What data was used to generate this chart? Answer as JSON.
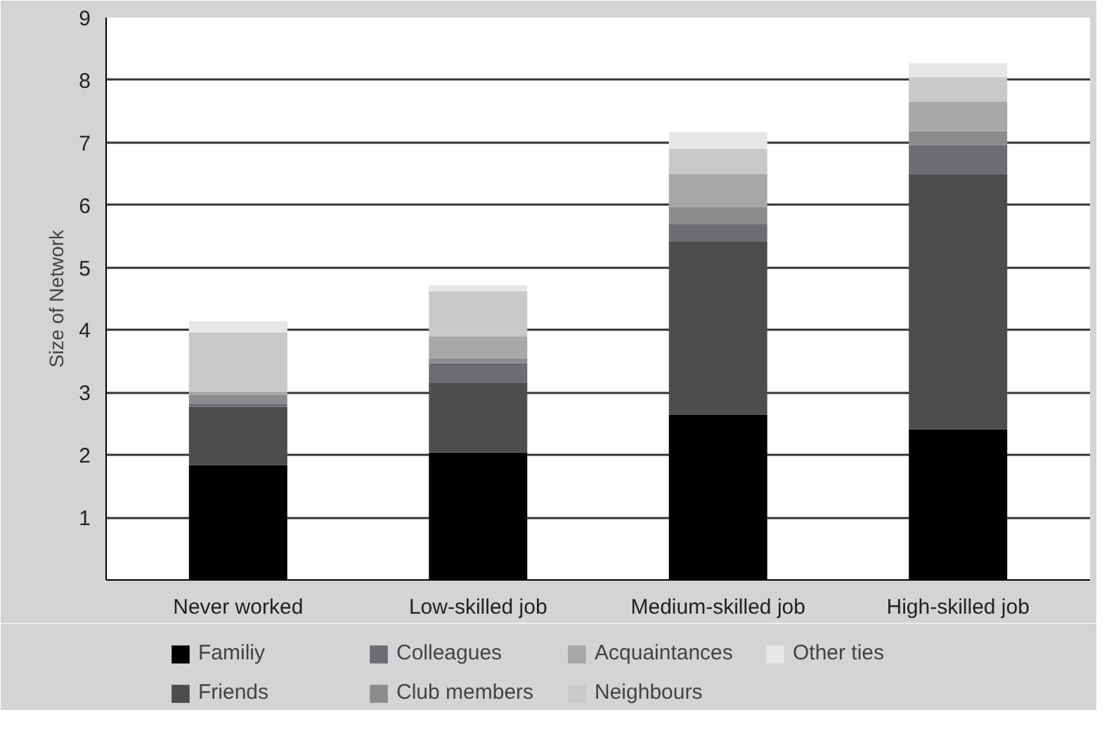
{
  "chart_data": {
    "type": "bar",
    "stacked": true,
    "ylabel": "Size of Network",
    "categories": [
      "Never worked",
      "Low-skilled job",
      "Medium-skilled job",
      "High-skilled job"
    ],
    "series": [
      {
        "name": "Familiy",
        "color": "#000000",
        "values": [
          1.84,
          2.04,
          2.65,
          2.41
        ]
      },
      {
        "name": "Friends",
        "color": "#4d4d4f",
        "values": [
          0.93,
          1.11,
          2.76,
          4.09
        ]
      },
      {
        "name": "Colleagues",
        "color": "#6c6d70",
        "values": [
          0.05,
          0.32,
          0.29,
          0.46
        ]
      },
      {
        "name": "Club members",
        "color": "#8b8c8e",
        "values": [
          0.14,
          0.08,
          0.27,
          0.22
        ]
      },
      {
        "name": "Acquaintances",
        "color": "#a7a8aa",
        "values": [
          0.04,
          0.35,
          0.53,
          0.47
        ]
      },
      {
        "name": "Neighbours",
        "color": "#c8c9cb",
        "values": [
          0.96,
          0.72,
          0.4,
          0.4
        ]
      },
      {
        "name": "Other ties",
        "color": "#e6e7e8",
        "values": [
          0.18,
          0.1,
          0.27,
          0.22
        ]
      }
    ],
    "ylim": [
      0,
      9
    ],
    "yticks": [
      {
        "value": 0,
        "label": null
      },
      1,
      2,
      3,
      4,
      5,
      6,
      7,
      8,
      9
    ],
    "grid": "y",
    "legend": "bottom"
  }
}
